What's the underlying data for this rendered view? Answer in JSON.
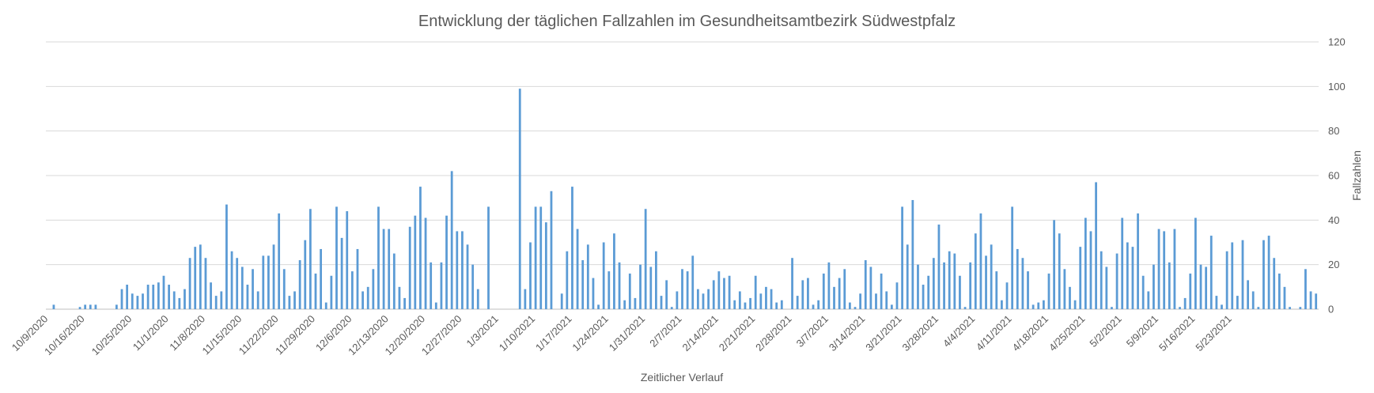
{
  "chart_data": {
    "type": "bar",
    "title": "Entwicklung der täglichen Fallzahlen im Gesundheitsamtbezirk Südwestpfalz",
    "xlabel": "Zeitlicher Verlauf",
    "ylabel": "Fallzahlen",
    "ylim": [
      0,
      120
    ],
    "yticks": [
      0,
      20,
      40,
      60,
      80,
      100,
      120
    ],
    "y_axis_side": "right",
    "grid": true,
    "legend": "none",
    "bar_color": "#5b9bd5",
    "grid_color": "#d9d9d9",
    "text_color": "#595959",
    "start_date": "10/9/2020",
    "x_tick_labels": [
      "10/9/2020",
      "10/16/2020",
      "10/25/2020",
      "11/1/2020",
      "11/8/2020",
      "11/15/2020",
      "11/22/2020",
      "11/29/2020",
      "12/6/2020",
      "12/13/2020",
      "12/20/2020",
      "12/27/2020",
      "1/3/2021",
      "1/10/2021",
      "1/17/2021",
      "1/24/2021",
      "1/31/2021",
      "2/7/2021",
      "2/14/2021",
      "2/21/2021",
      "2/28/2021",
      "3/7/2021",
      "3/14/2021",
      "3/21/2021",
      "3/28/2021",
      "4/4/2021",
      "4/11/2021",
      "4/18/2021",
      "4/25/2021",
      "5/2/2021",
      "5/9/2021",
      "5/16/2021",
      "5/23/2021"
    ],
    "values": [
      0,
      2,
      0,
      0,
      0,
      0,
      1,
      2,
      2,
      2,
      0,
      0,
      0,
      2,
      9,
      11,
      7,
      6,
      7,
      11,
      11,
      12,
      15,
      11,
      8,
      5,
      9,
      23,
      28,
      29,
      23,
      12,
      6,
      8,
      47,
      26,
      23,
      19,
      11,
      18,
      8,
      24,
      24,
      29,
      43,
      18,
      6,
      8,
      22,
      31,
      45,
      16,
      27,
      3,
      15,
      46,
      32,
      44,
      17,
      27,
      8,
      10,
      18,
      46,
      36,
      36,
      25,
      10,
      5,
      37,
      42,
      55,
      41,
      21,
      3,
      21,
      42,
      62,
      35,
      35,
      29,
      20,
      9,
      0,
      46,
      0,
      0,
      0,
      0,
      0,
      99,
      9,
      30,
      46,
      46,
      39,
      53,
      0,
      7,
      26,
      55,
      36,
      22,
      29,
      14,
      2,
      30,
      17,
      34,
      21,
      4,
      16,
      5,
      20,
      45,
      19,
      26,
      6,
      13,
      1,
      8,
      18,
      17,
      24,
      9,
      7,
      9,
      13,
      17,
      14,
      15,
      4,
      8,
      3,
      5,
      15,
      7,
      10,
      9,
      3,
      4,
      0,
      23,
      6,
      13,
      14,
      2,
      4,
      16,
      21,
      10,
      14,
      18,
      3,
      1,
      7,
      22,
      19,
      7,
      16,
      8,
      2,
      12,
      46,
      29,
      49,
      20,
      11,
      15,
      23,
      38,
      21,
      26,
      25,
      15,
      1,
      21,
      34,
      43,
      24,
      29,
      17,
      4,
      12,
      46,
      27,
      23,
      17,
      2,
      3,
      4,
      16,
      40,
      34,
      18,
      10,
      4,
      28,
      41,
      35,
      57,
      26,
      19,
      1,
      25,
      41,
      30,
      28,
      43,
      15,
      8,
      20,
      36,
      35,
      21,
      36,
      1,
      5,
      16,
      41,
      20,
      19,
      33,
      6,
      2,
      26,
      30,
      6,
      31,
      13,
      8,
      1,
      31,
      33,
      23,
      16,
      10,
      1,
      0,
      1,
      18,
      8,
      7
    ]
  }
}
